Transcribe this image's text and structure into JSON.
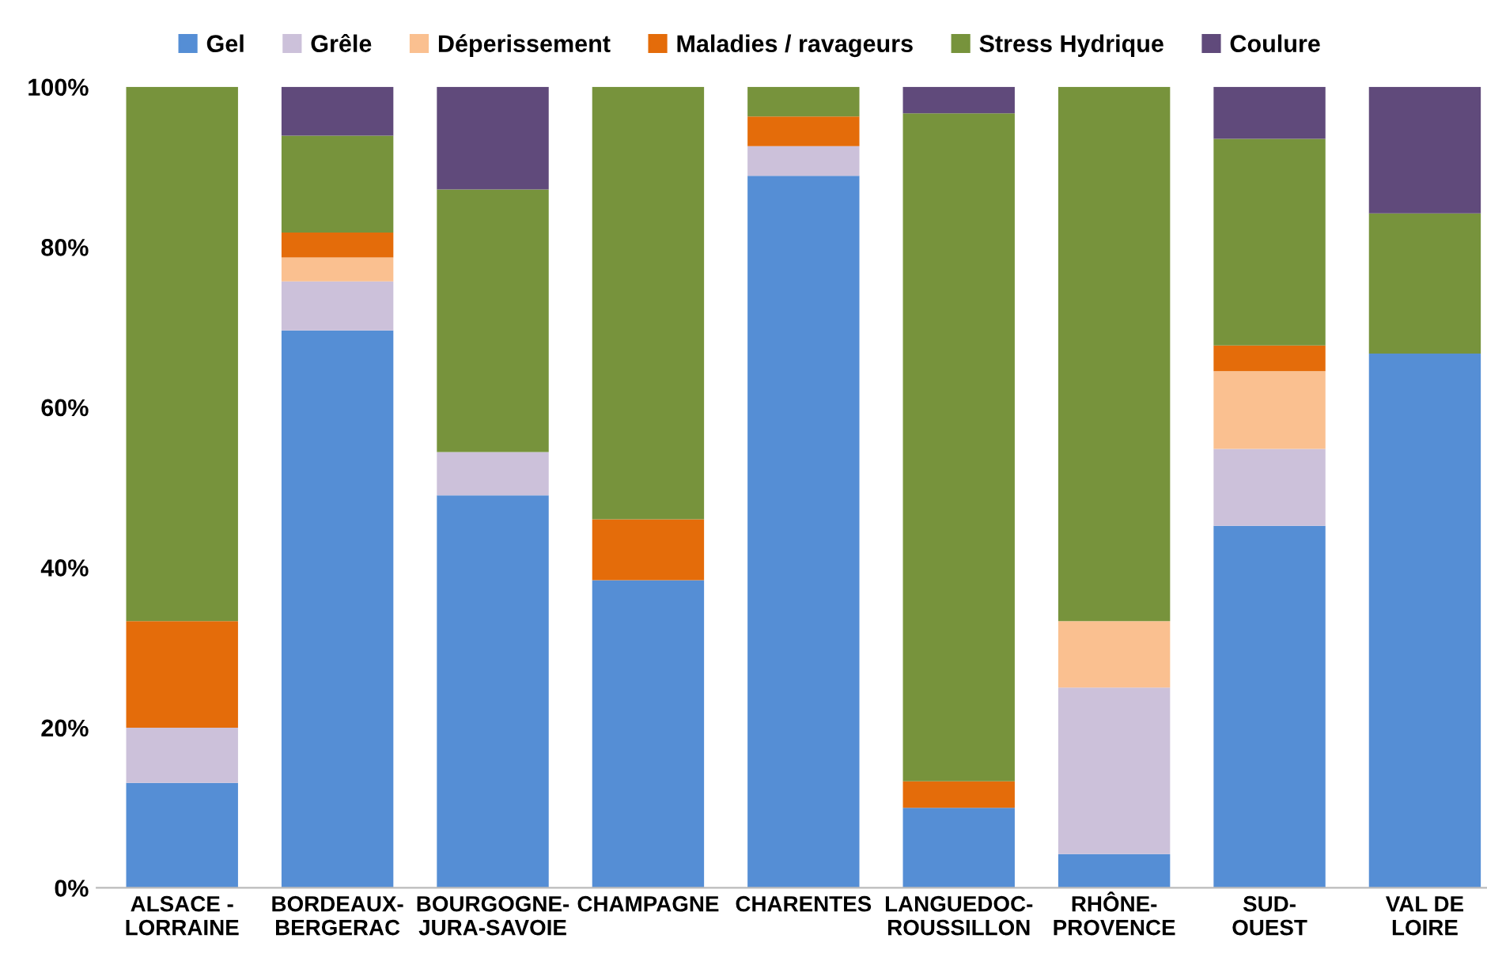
{
  "chart_data": {
    "type": "bar",
    "stacked": true,
    "categories": [
      "ALSACE -\nLORRAINE",
      "BORDEAUX-\nBERGERAC",
      "BOURGOGNE-\nJURA-SAVOIE",
      "CHAMPAGNE",
      "CHARENTES",
      "LANGUEDOC-\nROUSSILLON",
      "RHÔNE-\nPROVENCE",
      "SUD-\nOUEST",
      "VAL DE\nLOIRE"
    ],
    "series": [
      {
        "name": "Gel",
        "color": "#558ed5",
        "values": [
          13.1,
          69.6,
          49,
          38.4,
          88.9,
          10,
          4.2,
          45.2,
          66.7
        ]
      },
      {
        "name": "Grêle",
        "color": "#ccc1da",
        "values": [
          6.9,
          6.1,
          5.4,
          null,
          3.7,
          null,
          20.8,
          9.6,
          null
        ]
      },
      {
        "name": "Déperissement",
        "color": "#fac090",
        "values": [
          null,
          3,
          null,
          null,
          null,
          null,
          8.3,
          9.7,
          null
        ]
      },
      {
        "name": "Maladies / ravageurs",
        "color": "#e46c0a",
        "values": [
          13.3,
          3.1,
          null,
          7.6,
          3.7,
          3.3,
          null,
          3.2,
          null
        ]
      },
      {
        "name": "Stress Hydrique",
        "color": "#77933c",
        "values": [
          66.7,
          12.1,
          32.8,
          54,
          3.7,
          83.4,
          66.7,
          25.8,
          17.5
        ]
      },
      {
        "name": "Coulure",
        "color": "#604a7b",
        "values": [
          null,
          6.1,
          12.8,
          null,
          null,
          3.3,
          null,
          6.5,
          15.8
        ]
      }
    ],
    "ylim": [
      0,
      100
    ],
    "yticks": [
      {
        "value": 0,
        "label": "0%"
      },
      {
        "value": 20,
        "label": "20%"
      },
      {
        "value": 40,
        "label": "40%"
      },
      {
        "value": 60,
        "label": "60%"
      },
      {
        "value": 80,
        "label": "80%"
      },
      {
        "value": 100,
        "label": "100%"
      }
    ],
    "grid": false,
    "legend": "top"
  }
}
